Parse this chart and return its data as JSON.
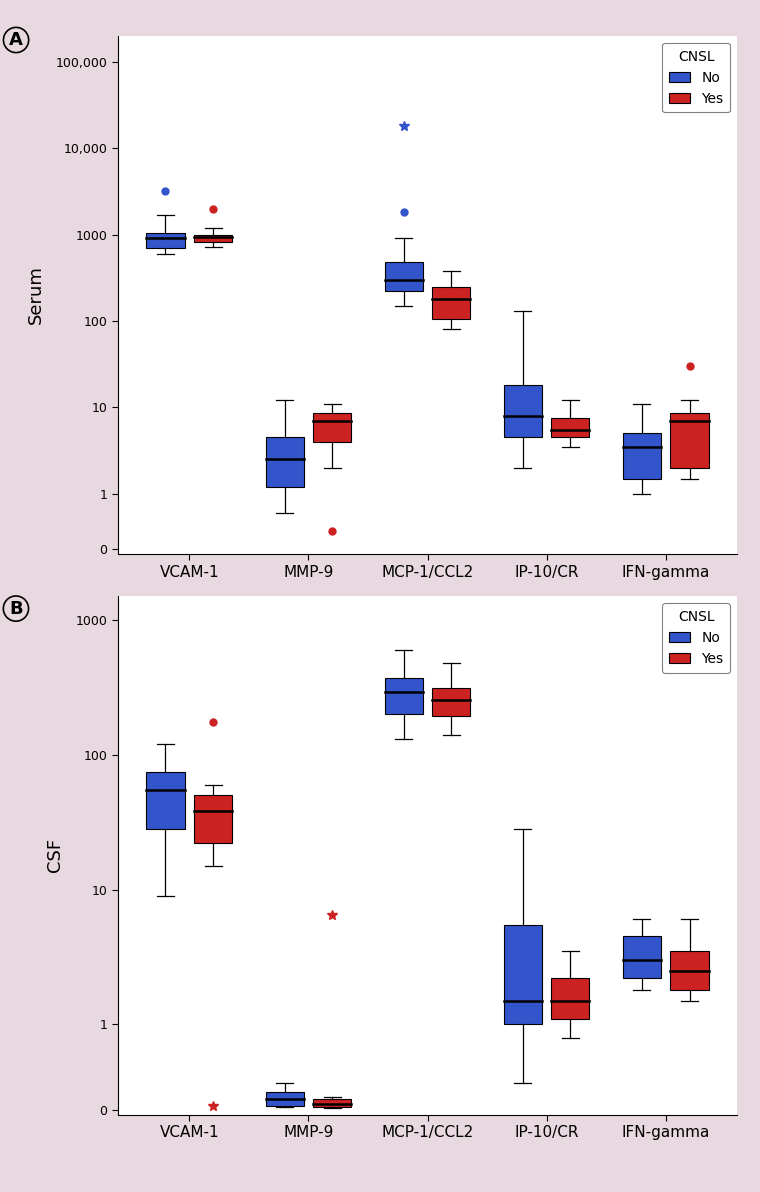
{
  "panel_A_label": "A",
  "panel_B_label": "B",
  "ylabel_A": "Serum",
  "ylabel_B": "CSF",
  "categories": [
    "VCAM-1",
    "MMP-9",
    "MCP-1/CCL2",
    "IP-10/CR",
    "IFN-gamma"
  ],
  "blue_color": "#3355CC",
  "red_color": "#CC2222",
  "bg_color": "#E8D8E0",
  "legend_title": "CNSL",
  "panel_A": {
    "blue": {
      "VCAM-1": {
        "q1": 700,
        "median": 900,
        "q3": 1050,
        "whislo": 600,
        "whishi": 1700,
        "fliers_high": [
          3200
        ],
        "fliers_low": [],
        "fh_markers": [
          "o"
        ],
        "fl_markers": []
      },
      "MMP-9": {
        "q1": 1.2,
        "median": 2.5,
        "q3": 4.5,
        "whislo": 0.6,
        "whishi": 12,
        "fliers_high": [],
        "fliers_low": [],
        "fh_markers": [],
        "fl_markers": []
      },
      "MCP-1/CCL2": {
        "q1": 220,
        "median": 300,
        "q3": 480,
        "whislo": 150,
        "whishi": 900,
        "fliers_high": [
          1800,
          18000
        ],
        "fliers_low": [],
        "fh_markers": [
          "o",
          "*"
        ],
        "fl_markers": []
      },
      "IP-10/CR": {
        "q1": 4.5,
        "median": 8,
        "q3": 18,
        "whislo": 2,
        "whishi": 130,
        "fliers_high": [],
        "fliers_low": [],
        "fh_markers": [],
        "fl_markers": []
      },
      "IFN-gamma": {
        "q1": 1.5,
        "median": 3.5,
        "q3": 5,
        "whislo": 1.0,
        "whishi": 11,
        "fliers_high": [],
        "fliers_low": [],
        "fh_markers": [],
        "fl_markers": []
      }
    },
    "red": {
      "VCAM-1": {
        "q1": 820,
        "median": 940,
        "q3": 1000,
        "whislo": 720,
        "whishi": 1200,
        "fliers_high": [
          2000
        ],
        "fliers_low": [],
        "fh_markers": [
          "o"
        ],
        "fl_markers": []
      },
      "MMP-9": {
        "q1": 4.0,
        "median": 7.0,
        "q3": 8.5,
        "whislo": 2.0,
        "whishi": 11,
        "fliers_high": [],
        "fliers_low": [
          0.3
        ],
        "fh_markers": [],
        "fl_markers": [
          "o"
        ]
      },
      "MCP-1/CCL2": {
        "q1": 105,
        "median": 180,
        "q3": 250,
        "whislo": 80,
        "whishi": 380,
        "fliers_high": [],
        "fliers_low": [],
        "fh_markers": [],
        "fl_markers": []
      },
      "IP-10/CR": {
        "q1": 4.5,
        "median": 5.5,
        "q3": 7.5,
        "whislo": 3.5,
        "whishi": 12,
        "fliers_high": [],
        "fliers_low": [],
        "fh_markers": [],
        "fl_markers": []
      },
      "IFN-gamma": {
        "q1": 2.0,
        "median": 7.0,
        "q3": 8.5,
        "whislo": 1.5,
        "whishi": 12,
        "fliers_high": [
          30
        ],
        "fliers_low": [],
        "fh_markers": [
          "o"
        ],
        "fl_markers": []
      }
    }
  },
  "panel_B": {
    "blue": {
      "VCAM-1": {
        "q1": 28,
        "median": 55,
        "q3": 75,
        "whislo": 9,
        "whishi": 120,
        "fliers_high": [],
        "fliers_low": [],
        "fh_markers": [],
        "fl_markers": []
      },
      "MMP-9": {
        "q1": 0.05,
        "median": 0.12,
        "q3": 0.2,
        "whislo": 0.03,
        "whishi": 0.3,
        "fliers_high": [],
        "fliers_low": [],
        "fh_markers": [],
        "fl_markers": []
      },
      "MCP-1/CCL2": {
        "q1": 200,
        "median": 290,
        "q3": 370,
        "whislo": 130,
        "whishi": 600,
        "fliers_high": [],
        "fliers_low": [],
        "fh_markers": [],
        "fl_markers": []
      },
      "IP-10/CR": {
        "q1": 1.0,
        "median": 1.5,
        "q3": 5.5,
        "whislo": 0.3,
        "whishi": 28,
        "fliers_high": [],
        "fliers_low": [],
        "fh_markers": [],
        "fl_markers": []
      },
      "IFN-gamma": {
        "q1": 2.2,
        "median": 3.0,
        "q3": 4.5,
        "whislo": 1.8,
        "whishi": 6,
        "fliers_high": [],
        "fliers_low": [],
        "fh_markers": [],
        "fl_markers": []
      }
    },
    "red": {
      "VCAM-1": {
        "q1": 22,
        "median": 38,
        "q3": 50,
        "whislo": 15,
        "whishi": 60,
        "fliers_high": [
          175
        ],
        "fliers_low": [
          0.05
        ],
        "fh_markers": [
          "o"
        ],
        "fl_markers": [
          "*"
        ]
      },
      "MMP-9": {
        "q1": 0.03,
        "median": 0.07,
        "q3": 0.12,
        "whislo": 0.02,
        "whishi": 0.15,
        "fliers_high": [
          6.5
        ],
        "fliers_low": [],
        "fh_markers": [
          "*"
        ],
        "fl_markers": []
      },
      "MCP-1/CCL2": {
        "q1": 195,
        "median": 255,
        "q3": 310,
        "whislo": 140,
        "whishi": 480,
        "fliers_high": [],
        "fliers_low": [],
        "fh_markers": [],
        "fl_markers": []
      },
      "IP-10/CR": {
        "q1": 1.1,
        "median": 1.5,
        "q3": 2.2,
        "whislo": 0.8,
        "whishi": 3.5,
        "fliers_high": [],
        "fliers_low": [],
        "fh_markers": [],
        "fl_markers": []
      },
      "IFN-gamma": {
        "q1": 1.8,
        "median": 2.5,
        "q3": 3.5,
        "whislo": 1.5,
        "whishi": 6,
        "fliers_high": [],
        "fliers_low": [],
        "fh_markers": [],
        "fl_markers": []
      }
    }
  },
  "panel_A_yticks": [
    0,
    1,
    10,
    100,
    1000,
    10000,
    100000
  ],
  "panel_A_yticklabels": [
    "0",
    "1",
    "10",
    "100",
    "1000",
    "10,000",
    "100,000"
  ],
  "panel_A_linthresh": 0.5,
  "panel_A_ylim": [
    -0.1,
    200000
  ],
  "panel_B_yticks": [
    0,
    1,
    10,
    100,
    1000
  ],
  "panel_B_yticklabels": [
    "0",
    "1",
    "10",
    "100",
    "1000"
  ],
  "panel_B_linthresh": 0.5,
  "panel_B_ylim": [
    -0.05,
    1500
  ]
}
